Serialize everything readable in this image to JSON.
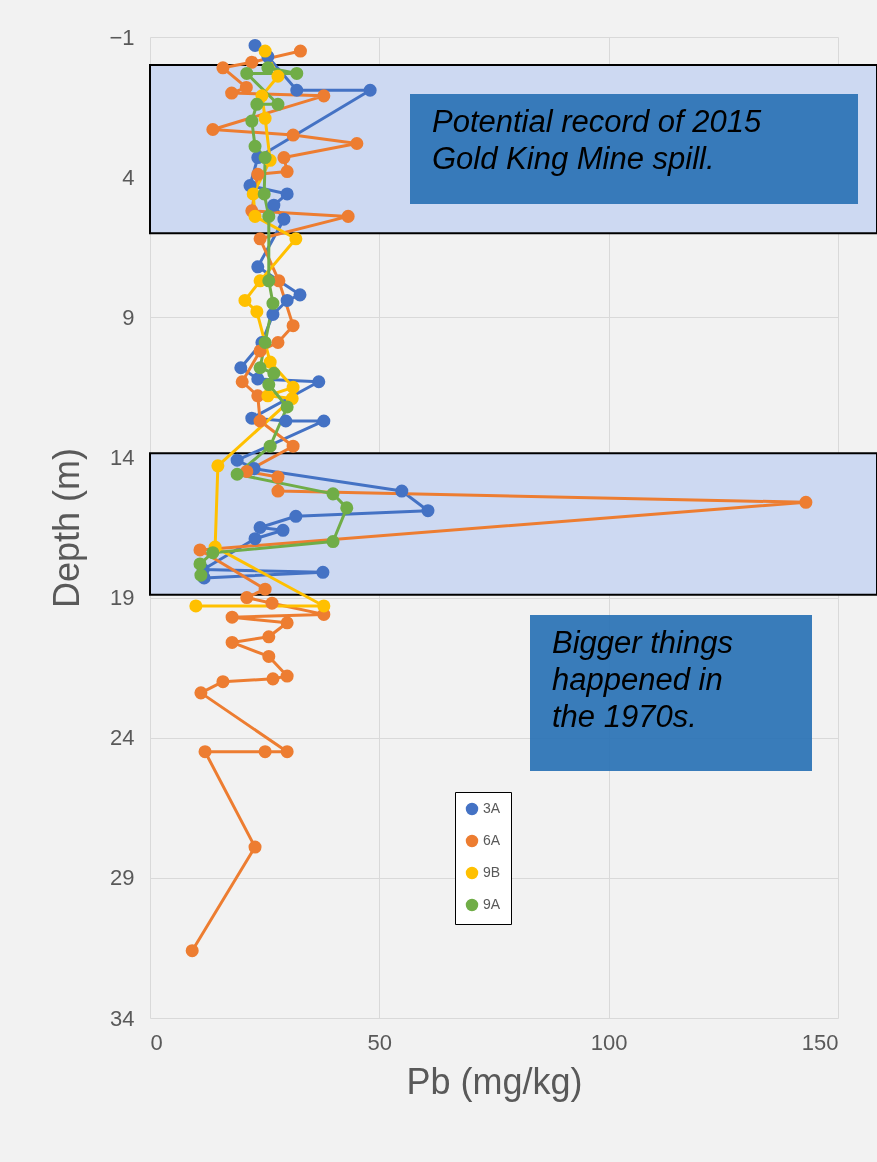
{
  "chart_data": {
    "type": "line",
    "xlabel": "Pb (mg/kg)",
    "ylabel": "Depth (m)",
    "xlim": [
      0,
      150
    ],
    "xticks": [
      0,
      50,
      100,
      150
    ],
    "ylim": [
      34,
      -1
    ],
    "yticks": [
      -1,
      4,
      9,
      14,
      19,
      24,
      29,
      34
    ],
    "grid": true,
    "legend": "bottom",
    "marker": "circle",
    "line_style": "solid",
    "series": [
      {
        "name": "3A",
        "color": "#4472c4",
        "x": [
          22.9,
          25.7,
          32,
          48,
          23.5,
          21.8,
          29.9,
          27,
          29.2,
          23.5,
          32.7,
          29.9,
          26.8,
          24.4,
          19.8,
          23.5,
          36.8,
          22.2,
          29.6,
          37.9,
          19,
          22.7,
          54.9,
          60.6,
          31.8,
          24,
          29,
          22.9,
          11.6,
          37.7,
          11.8
        ],
        "values": [
          -0.7,
          -0.3,
          0.9,
          0.9,
          3.3,
          4.3,
          4.6,
          5,
          5.5,
          7.2,
          8.2,
          8.4,
          8.9,
          9.9,
          10.8,
          11.2,
          11.3,
          12.6,
          12.7,
          12.7,
          14.1,
          14.4,
          15.2,
          15.9,
          16.1,
          16.5,
          16.6,
          16.9,
          18,
          18.1,
          18.3
        ]
      },
      {
        "name": "6A",
        "color": "#ed7d31",
        "x": [
          32.8,
          22.2,
          15.9,
          21,
          17.8,
          37.9,
          13.7,
          31.2,
          45.1,
          29.2,
          29.9,
          23.5,
          22.2,
          43.2,
          24,
          28.1,
          31.2,
          27.9,
          24,
          20.1,
          23.5,
          24,
          31.2,
          21.1,
          27.9,
          27.9,
          143,
          10.9,
          25.1,
          21.1,
          26.6,
          37.9,
          17.9,
          29.9,
          25.9,
          17.9,
          25.9,
          29.9,
          26.8,
          15.9,
          11.1,
          29.9,
          25.1,
          12,
          22.9,
          9.2
        ],
        "values": [
          -0.5,
          -0.1,
          0.1,
          0.8,
          1,
          1.1,
          2.3,
          2.5,
          2.8,
          3.3,
          3.8,
          3.9,
          5.2,
          5.4,
          6.2,
          7.7,
          9.3,
          9.9,
          10.2,
          11.3,
          11.8,
          12.7,
          13.6,
          14.5,
          14.7,
          15.2,
          15.6,
          17.3,
          18.7,
          19,
          19.2,
          19.6,
          19.7,
          19.9,
          20.4,
          20.6,
          21.1,
          21.8,
          21.9,
          22,
          22.4,
          24.5,
          24.5,
          24.5,
          27.9,
          31.6
        ]
      },
      {
        "name": "9B",
        "color": "#ffc000",
        "x": [
          25.1,
          27.9,
          24.4,
          25.1,
          26.2,
          22.5,
          22.9,
          31.8,
          24,
          20.7,
          23.3,
          26.2,
          31.2,
          25.7,
          31,
          14.8,
          14.2,
          37.9,
          10
        ],
        "values": [
          -0.5,
          0.4,
          1.1,
          1.9,
          3.4,
          4.6,
          5.4,
          6.2,
          7.7,
          8.4,
          8.8,
          10.6,
          11.5,
          11.8,
          11.9,
          14.3,
          17.2,
          19.3,
          19.3
        ]
      },
      {
        "name": "9A",
        "color": "#70ad47",
        "x": [
          25.7,
          32,
          21.1,
          27.9,
          23.3,
          22.2,
          22.9,
          25.1,
          24.9,
          25.9,
          25.9,
          26.8,
          25.1,
          24,
          27,
          25.9,
          29.9,
          26.2,
          19,
          39.9,
          42.9,
          39.9,
          13.7,
          10.9,
          11.1
        ],
        "values": [
          0.1,
          0.3,
          0.3,
          1.4,
          1.4,
          2,
          2.9,
          3.3,
          4.6,
          5.4,
          7.7,
          8.5,
          9.9,
          10.8,
          11,
          11.4,
          12.2,
          13.6,
          14.6,
          15.3,
          15.8,
          17,
          17.4,
          17.8,
          18.2
        ]
      }
    ],
    "bands": [
      {
        "axis": "y",
        "from": 0,
        "to": 6,
        "color": "#cdd9f2"
      },
      {
        "axis": "y",
        "from": 13.85,
        "to": 18.9,
        "color": "#cdd9f2"
      }
    ],
    "annotations": [
      "Potential record of 2015\nGold King Mine spill.",
      "Bigger things\nhappened in\nthe 1970s."
    ]
  }
}
